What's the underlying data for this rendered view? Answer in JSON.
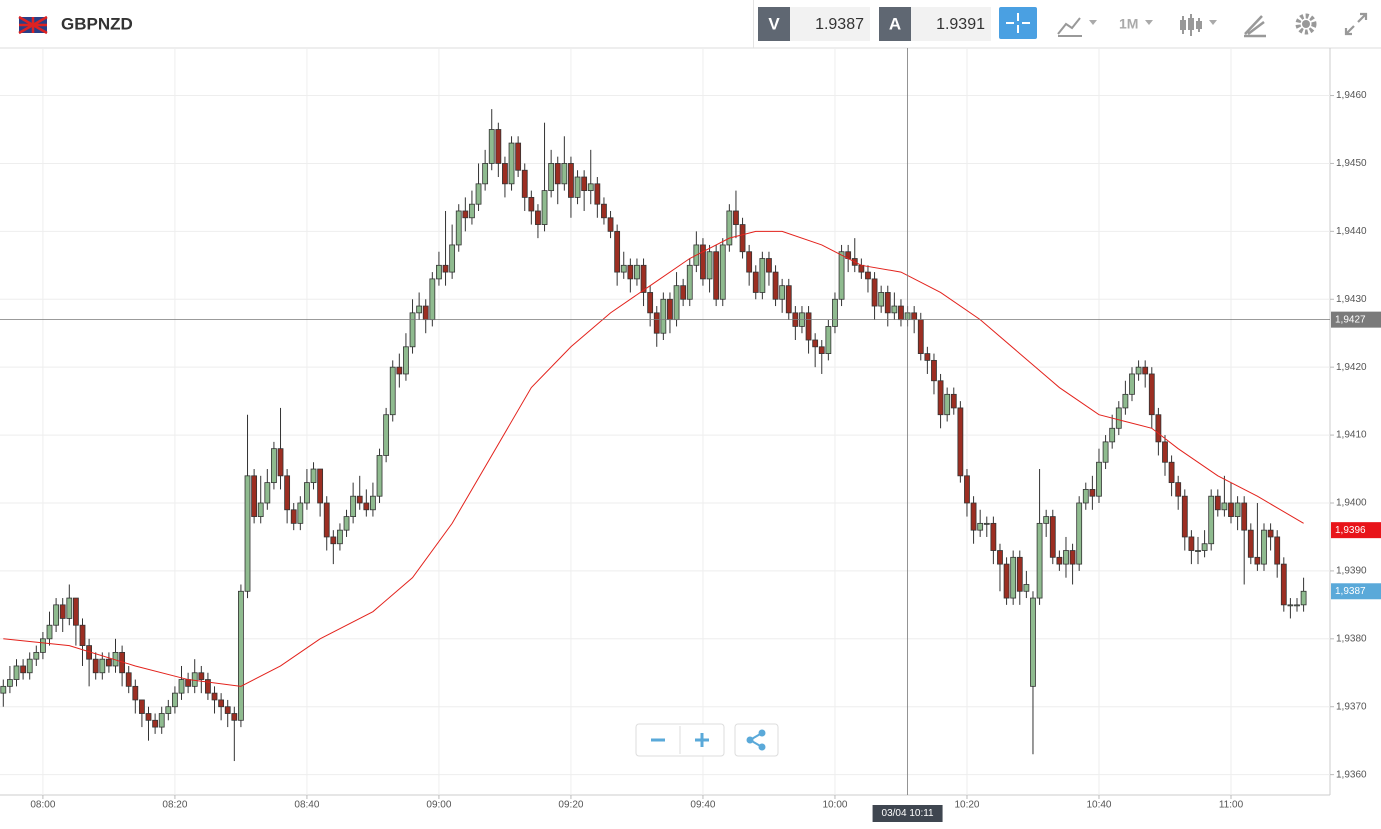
{
  "toolbar": {
    "symbol": "GBPNZD",
    "sell_label": "V",
    "sell": 1.9387,
    "buy_label": "A",
    "buy": 1.9391,
    "timeframe": "1M"
  },
  "chart_data": {
    "type": "candlestick",
    "up_color": "#8fbb8f",
    "down_color": "#9c2e22",
    "ma_color": "#e3221c",
    "grid": true,
    "open": [
      1.9372,
      1.9373,
      1.9374,
      1.9376,
      1.9375,
      1.9377,
      1.9378,
      1.938,
      1.9382,
      1.9385,
      1.9383,
      1.9386,
      1.9382,
      1.9379,
      1.9377,
      1.9375,
      1.9377,
      1.9376,
      1.9378,
      1.9375,
      1.9373,
      1.9371,
      1.9369,
      1.9368,
      1.9367,
      1.9369,
      1.937,
      1.9372,
      1.9374,
      1.9373,
      1.9375,
      1.9374,
      1.9372,
      1.9371,
      1.937,
      1.9369,
      1.9368,
      1.9387,
      1.9404,
      1.9398,
      1.94,
      1.9403,
      1.9408,
      1.9404,
      1.9399,
      1.9397,
      1.94,
      1.9403,
      1.9405,
      1.94,
      1.9395,
      1.9394,
      1.9396,
      1.9398,
      1.9401,
      1.94,
      1.9399,
      1.9401,
      1.9407,
      1.9413,
      1.942,
      1.9419,
      1.9423,
      1.9428,
      1.9429,
      1.9427,
      1.9433,
      1.9435,
      1.9434,
      1.9438,
      1.9443,
      1.9442,
      1.9444,
      1.9447,
      1.945,
      1.9455,
      1.945,
      1.9447,
      1.9453,
      1.9449,
      1.9445,
      1.9443,
      1.9441,
      1.9446,
      1.945,
      1.9447,
      1.945,
      1.9445,
      1.9448,
      1.9446,
      1.9447,
      1.9444,
      1.9442,
      1.944,
      1.9434,
      1.9435,
      1.9433,
      1.9435,
      1.9431,
      1.9428,
      1.9425,
      1.943,
      1.9427,
      1.9432,
      1.943,
      1.9435,
      1.9438,
      1.9433,
      1.9437,
      1.943,
      1.9438,
      1.9443,
      1.9441,
      1.9437,
      1.9434,
      1.9431,
      1.9436,
      1.9434,
      1.943,
      1.9432,
      1.9428,
      1.9426,
      1.9428,
      1.9424,
      1.9423,
      1.9422,
      1.9426,
      1.943,
      1.9437,
      1.9436,
      1.9435,
      1.9434,
      1.9433,
      1.9429,
      1.9431,
      1.9428,
      1.9429,
      1.9427,
      1.9428,
      1.9427,
      1.9422,
      1.9421,
      1.9418,
      1.9413,
      1.9416,
      1.9414,
      1.9404,
      1.94,
      1.9396,
      1.9397,
      1.9397,
      1.9393,
      1.9391,
      1.9386,
      1.9392,
      1.9387,
      1.9373,
      1.9386,
      1.9397,
      1.9398,
      1.9392,
      1.9391,
      1.9393,
      1.9391,
      1.94,
      1.9402,
      1.9401,
      1.9406,
      1.9409,
      1.9411,
      1.9414,
      1.9416,
      1.9419,
      1.942,
      1.9419,
      1.9413,
      1.9409,
      1.9406,
      1.9403,
      1.9401,
      1.9395,
      1.9393,
      1.9393,
      1.9394,
      1.9401,
      1.9399,
      1.94,
      1.9398,
      1.94,
      1.9396,
      1.9392,
      1.9391,
      1.9396,
      1.9395,
      1.9391,
      1.9385,
      1.9385,
      1.9385
    ],
    "high": [
      1.9374,
      1.9376,
      1.9377,
      1.9377,
      1.9378,
      1.9379,
      1.9381,
      1.9384,
      1.9386,
      1.9386,
      1.9388,
      1.9386,
      1.9383,
      1.938,
      1.9378,
      1.9378,
      1.9378,
      1.938,
      1.9379,
      1.9376,
      1.9374,
      1.9371,
      1.937,
      1.9369,
      1.937,
      1.9371,
      1.9373,
      1.9376,
      1.9375,
      1.9377,
      1.9376,
      1.9375,
      1.9373,
      1.9372,
      1.9371,
      1.937,
      1.9388,
      1.9413,
      1.9405,
      1.9404,
      1.9405,
      1.9409,
      1.9414,
      1.9405,
      1.94,
      1.9401,
      1.9405,
      1.9406,
      1.9405,
      1.9401,
      1.9396,
      1.9397,
      1.9399,
      1.9403,
      1.9404,
      1.9402,
      1.9403,
      1.9408,
      1.9414,
      1.9421,
      1.9422,
      1.9425,
      1.943,
      1.9431,
      1.943,
      1.9434,
      1.9437,
      1.9443,
      1.9441,
      1.9444,
      1.9445,
      1.9446,
      1.945,
      1.9452,
      1.9458,
      1.9456,
      1.9451,
      1.9454,
      1.9454,
      1.945,
      1.9446,
      1.9444,
      1.9456,
      1.9452,
      1.9451,
      1.9454,
      1.9451,
      1.9449,
      1.9449,
      1.9452,
      1.9448,
      1.9445,
      1.9443,
      1.9441,
      1.9437,
      1.9436,
      1.9436,
      1.9436,
      1.9432,
      1.9429,
      1.9431,
      1.9431,
      1.9434,
      1.9433,
      1.9436,
      1.944,
      1.9439,
      1.9438,
      1.9438,
      1.9439,
      1.9444,
      1.9446,
      1.9442,
      1.9438,
      1.9435,
      1.9437,
      1.9437,
      1.9435,
      1.9433,
      1.9433,
      1.9429,
      1.9429,
      1.9429,
      1.9425,
      1.9424,
      1.9427,
      1.9431,
      1.9438,
      1.9438,
      1.9439,
      1.9436,
      1.9435,
      1.9434,
      1.9432,
      1.9432,
      1.9431,
      1.943,
      1.9429,
      1.9429,
      1.9428,
      1.9423,
      1.9422,
      1.9419,
      1.9417,
      1.9417,
      1.9415,
      1.9405,
      1.9401,
      1.9399,
      1.9398,
      1.9398,
      1.9394,
      1.9392,
      1.9393,
      1.9393,
      1.939,
      1.9387,
      1.9405,
      1.9399,
      1.9399,
      1.9393,
      1.9395,
      1.9394,
      1.9401,
      1.9403,
      1.9404,
      1.9408,
      1.941,
      1.9413,
      1.9415,
      1.9418,
      1.942,
      1.9421,
      1.9421,
      1.942,
      1.9414,
      1.941,
      1.9407,
      1.9404,
      1.9402,
      1.9396,
      1.9395,
      1.9396,
      1.9402,
      1.9402,
      1.9404,
      1.9403,
      1.9401,
      1.9401,
      1.9397,
      1.94,
      1.9397,
      1.9397,
      1.9396,
      1.9392,
      1.9386,
      1.9386,
      1.9389
    ],
    "low": [
      1.937,
      1.9372,
      1.9373,
      1.9374,
      1.9374,
      1.9376,
      1.9377,
      1.9379,
      1.9381,
      1.9381,
      1.9382,
      1.9379,
      1.9376,
      1.9373,
      1.9374,
      1.9374,
      1.9375,
      1.9375,
      1.9373,
      1.9372,
      1.9369,
      1.9367,
      1.9365,
      1.9366,
      1.9366,
      1.9368,
      1.9369,
      1.9371,
      1.9372,
      1.9372,
      1.9372,
      1.9371,
      1.9369,
      1.9368,
      1.9367,
      1.9362,
      1.9367,
      1.9386,
      1.9397,
      1.9397,
      1.9399,
      1.9402,
      1.9402,
      1.9397,
      1.9396,
      1.9396,
      1.9399,
      1.9402,
      1.9398,
      1.9393,
      1.9391,
      1.9393,
      1.9395,
      1.9397,
      1.9399,
      1.9398,
      1.9398,
      1.94,
      1.9406,
      1.9412,
      1.9417,
      1.9418,
      1.9422,
      1.9427,
      1.9425,
      1.9426,
      1.9432,
      1.9432,
      1.9433,
      1.9437,
      1.944,
      1.9441,
      1.9443,
      1.9446,
      1.9449,
      1.9448,
      1.9445,
      1.9446,
      1.9448,
      1.9443,
      1.9441,
      1.9439,
      1.944,
      1.9445,
      1.9444,
      1.9446,
      1.9442,
      1.9444,
      1.9443,
      1.9444,
      1.9442,
      1.9441,
      1.9439,
      1.9432,
      1.9433,
      1.9431,
      1.9432,
      1.9429,
      1.9426,
      1.9423,
      1.9424,
      1.9425,
      1.9426,
      1.9429,
      1.9429,
      1.9434,
      1.9432,
      1.9431,
      1.9429,
      1.9429,
      1.9437,
      1.9439,
      1.9436,
      1.9432,
      1.943,
      1.943,
      1.9432,
      1.9429,
      1.9428,
      1.9427,
      1.9424,
      1.9425,
      1.9422,
      1.942,
      1.9419,
      1.9421,
      1.9425,
      1.9429,
      1.9434,
      1.9434,
      1.9433,
      1.9431,
      1.9427,
      1.9428,
      1.9426,
      1.9427,
      1.9426,
      1.9426,
      1.9425,
      1.9421,
      1.9419,
      1.9416,
      1.9411,
      1.9412,
      1.9413,
      1.9403,
      1.9398,
      1.9394,
      1.9395,
      1.9395,
      1.9391,
      1.9387,
      1.9385,
      1.9385,
      1.9385,
      1.9386,
      1.9363,
      1.9385,
      1.9395,
      1.9391,
      1.939,
      1.9389,
      1.9388,
      1.939,
      1.9399,
      1.9399,
      1.94,
      1.9405,
      1.9408,
      1.941,
      1.9413,
      1.9415,
      1.9418,
      1.9417,
      1.9411,
      1.9407,
      1.9404,
      1.9401,
      1.9399,
      1.9393,
      1.9391,
      1.9391,
      1.9392,
      1.9393,
      1.9398,
      1.9398,
      1.9397,
      1.9396,
      1.9388,
      1.9391,
      1.939,
      1.939,
      1.9393,
      1.9389,
      1.9384,
      1.9383,
      1.9384,
      1.9384
    ],
    "close": [
      1.9373,
      1.9374,
      1.9376,
      1.9375,
      1.9377,
      1.9378,
      1.938,
      1.9382,
      1.9385,
      1.9383,
      1.9386,
      1.9382,
      1.9379,
      1.9377,
      1.9375,
      1.9377,
      1.9376,
      1.9378,
      1.9375,
      1.9373,
      1.9371,
      1.9369,
      1.9368,
      1.9367,
      1.9369,
      1.937,
      1.9372,
      1.9374,
      1.9373,
      1.9375,
      1.9374,
      1.9372,
      1.9371,
      1.937,
      1.9369,
      1.9368,
      1.9387,
      1.9404,
      1.9398,
      1.94,
      1.9403,
      1.9408,
      1.9404,
      1.9399,
      1.9397,
      1.94,
      1.9403,
      1.9405,
      1.94,
      1.9395,
      1.9394,
      1.9396,
      1.9398,
      1.9401,
      1.94,
      1.9399,
      1.9401,
      1.9407,
      1.9413,
      1.942,
      1.9419,
      1.9423,
      1.9428,
      1.9429,
      1.9427,
      1.9433,
      1.9435,
      1.9434,
      1.9438,
      1.9443,
      1.9442,
      1.9444,
      1.9447,
      1.945,
      1.9455,
      1.945,
      1.9447,
      1.9453,
      1.9449,
      1.9445,
      1.9443,
      1.9441,
      1.9446,
      1.945,
      1.9447,
      1.945,
      1.9445,
      1.9448,
      1.9446,
      1.9447,
      1.9444,
      1.9442,
      1.944,
      1.9434,
      1.9435,
      1.9433,
      1.9435,
      1.9431,
      1.9428,
      1.9425,
      1.943,
      1.9427,
      1.9432,
      1.943,
      1.9435,
      1.9438,
      1.9433,
      1.9437,
      1.943,
      1.9438,
      1.9443,
      1.9441,
      1.9437,
      1.9434,
      1.9431,
      1.9436,
      1.9434,
      1.943,
      1.9432,
      1.9428,
      1.9426,
      1.9428,
      1.9424,
      1.9423,
      1.9422,
      1.9426,
      1.943,
      1.9437,
      1.9436,
      1.9435,
      1.9434,
      1.9433,
      1.9429,
      1.9431,
      1.9428,
      1.9429,
      1.9427,
      1.9428,
      1.9427,
      1.9422,
      1.9421,
      1.9418,
      1.9413,
      1.9416,
      1.9414,
      1.9404,
      1.94,
      1.9396,
      1.9397,
      1.9397,
      1.9393,
      1.9391,
      1.9386,
      1.9392,
      1.9387,
      1.9388,
      1.9386,
      1.9397,
      1.9398,
      1.9392,
      1.9391,
      1.9393,
      1.9391,
      1.94,
      1.9402,
      1.9401,
      1.9406,
      1.9409,
      1.9411,
      1.9414,
      1.9416,
      1.9419,
      1.942,
      1.9419,
      1.9413,
      1.9409,
      1.9406,
      1.9403,
      1.9401,
      1.9395,
      1.9393,
      1.9393,
      1.9394,
      1.9401,
      1.9399,
      1.94,
      1.9398,
      1.94,
      1.9396,
      1.9392,
      1.9391,
      1.9396,
      1.9395,
      1.9391,
      1.9385,
      1.9385,
      1.9385,
      1.9387
    ],
    "ma": {
      "x": [
        0,
        10,
        20,
        28,
        36,
        42,
        48,
        56,
        62,
        68,
        74,
        80,
        86,
        92,
        98,
        104,
        110,
        114,
        118,
        124,
        130,
        136,
        142,
        148,
        154,
        160,
        166,
        170,
        174,
        178,
        184,
        190,
        197
      ],
      "values": [
        1.938,
        1.9379,
        1.9376,
        1.9374,
        1.9373,
        1.9376,
        1.938,
        1.9384,
        1.9389,
        1.9397,
        1.9407,
        1.9417,
        1.9423,
        1.9428,
        1.9432,
        1.9436,
        1.9439,
        1.944,
        1.944,
        1.9438,
        1.9435,
        1.9434,
        1.9431,
        1.9427,
        1.9422,
        1.9417,
        1.9413,
        1.9412,
        1.9411,
        1.9408,
        1.9404,
        1.9401,
        1.9397
      ]
    },
    "ylim": [
      1.9357,
      1.9467
    ],
    "xlim": [
      0,
      201.5
    ],
    "yticks": [
      {
        "value": 1.936,
        "label": "1,9360"
      },
      {
        "value": 1.937,
        "label": "1,9370"
      },
      {
        "value": 1.938,
        "label": "1,9380"
      },
      {
        "value": 1.939,
        "label": "1,9390"
      },
      {
        "value": 1.94,
        "label": "1,9400"
      },
      {
        "value": 1.941,
        "label": "1,9410"
      },
      {
        "value": 1.942,
        "label": "1,9420"
      },
      {
        "value": 1.943,
        "label": "1,9430"
      },
      {
        "value": 1.944,
        "label": "1,9440"
      },
      {
        "value": 1.945,
        "label": "1,9450"
      },
      {
        "value": 1.946,
        "label": "1,9460"
      }
    ],
    "xticks": [
      {
        "value": 6,
        "label": "08:00"
      },
      {
        "value": 26,
        "label": "08:20"
      },
      {
        "value": 46,
        "label": "08:40"
      },
      {
        "value": 66,
        "label": "09:00"
      },
      {
        "value": 86,
        "label": "09:20"
      },
      {
        "value": 106,
        "label": "09:40"
      },
      {
        "value": 126,
        "label": "10:00"
      },
      {
        "value": 146,
        "label": "10:20"
      },
      {
        "value": 166,
        "label": "10:40"
      },
      {
        "value": 186,
        "label": "11:00"
      }
    ],
    "crosshair": {
      "x": 137,
      "x_label": "03/04 10:11",
      "y": 1.9427,
      "y_label": "1,9427",
      "color": "#7a7a7a"
    },
    "price_markers": [
      {
        "value": 1.9396,
        "label": "1,9396",
        "color": "#e8141a"
      },
      {
        "value": 1.9387,
        "label": "1,9387",
        "color": "#5aa9d9"
      }
    ]
  }
}
